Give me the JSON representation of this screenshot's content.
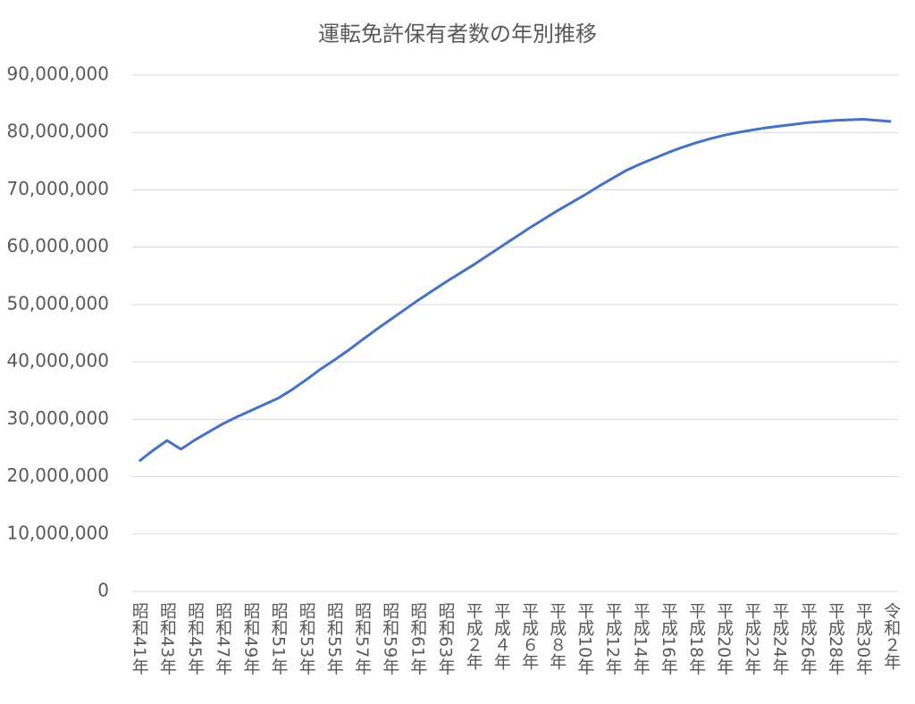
{
  "chart_data": {
    "type": "line",
    "title": "運転免許保有者数の年別推移",
    "categories": [
      "昭和41年",
      null,
      "昭和43年",
      null,
      "昭和45年",
      null,
      "昭和47年",
      null,
      "昭和49年",
      null,
      "昭和51年",
      null,
      "昭和53年",
      null,
      "昭和55年",
      null,
      "昭和57年",
      null,
      "昭和59年",
      null,
      "昭和61年",
      null,
      "昭和63年",
      null,
      "平成２年",
      null,
      "平成４年",
      null,
      "平成６年",
      null,
      "平成８年",
      null,
      "平成10年",
      null,
      "平成12年",
      null,
      "平成14年",
      null,
      "平成16年",
      null,
      "平成18年",
      null,
      "平成20年",
      null,
      "平成22年",
      null,
      "平成24年",
      null,
      "平成26年",
      null,
      "平成28年",
      null,
      "平成30年",
      null,
      "令和２年"
    ],
    "series": [
      {
        "name": "運転免許保有者数",
        "color": "#4472c4",
        "values": [
          22700000,
          24600000,
          26300000,
          24800000,
          26400000,
          27800000,
          29200000,
          30400000,
          31500000,
          32600000,
          33700000,
          35200000,
          36900000,
          38700000,
          40300000,
          42000000,
          43800000,
          45600000,
          47300000,
          49000000,
          50700000,
          52300000,
          53900000,
          55400000,
          56900000,
          58500000,
          60100000,
          61700000,
          63300000,
          64800000,
          66300000,
          67700000,
          69100000,
          70600000,
          72000000,
          73400000,
          74500000,
          75500000,
          76500000,
          77400000,
          78200000,
          78900000,
          79500000,
          80000000,
          80400000,
          80800000,
          81100000,
          81400000,
          81700000,
          81900000,
          82100000,
          82200000,
          82300000,
          82100000,
          81900000
        ]
      }
    ],
    "ylim": [
      0,
      90000000
    ],
    "yticks": [
      0,
      {
        "value": 10000000,
        "label": "10,000,000"
      },
      {
        "value": 20000000,
        "label": "20,000,000"
      },
      {
        "value": 30000000,
        "label": "30,000,000"
      },
      {
        "value": 40000000,
        "label": "40,000,000"
      },
      {
        "value": 50000000,
        "label": "50,000,000"
      },
      {
        "value": 60000000,
        "label": "60,000,000"
      },
      {
        "value": 70000000,
        "label": "70,000,000"
      },
      {
        "value": 80000000,
        "label": "80,000,000"
      },
      {
        "value": 90000000,
        "label": "90,000,000"
      }
    ],
    "grid": true
  }
}
